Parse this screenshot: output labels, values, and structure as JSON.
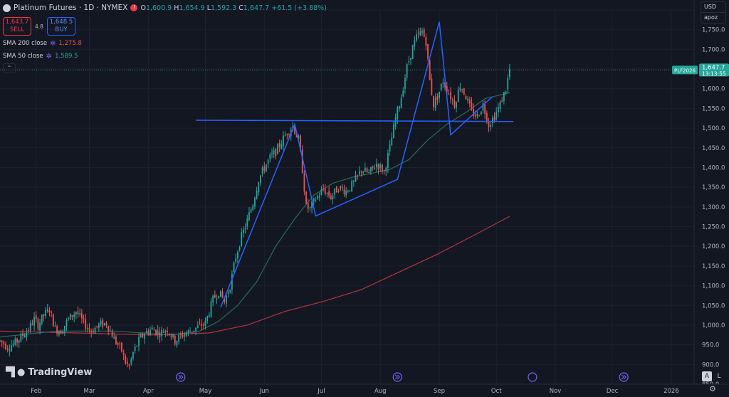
{
  "legend": {
    "title": "Platinum Futures · 1D · NYMEX",
    "o_label": "O",
    "o": "1,600.9",
    "h_label": "H",
    "h": "1,654.9",
    "l_label": "L",
    "l": "1,592.3",
    "c_label": "C",
    "c": "1,647.7",
    "change": "+61.5 (+3.88%)",
    "sell_price": "1,643.7",
    "sell_label": "SELL",
    "spread": "4.8",
    "buy_price": "1,648.5",
    "buy_label": "BUY",
    "sma200_name": "SMA 200 close",
    "sma200_value": "1,275.8",
    "sma50_name": "SMA 50 close",
    "sma50_value": "1,589.5"
  },
  "topright": {
    "currency": "USD",
    "scale": "apoz"
  },
  "logo": {
    "text": "TradingView"
  },
  "axis_buttons": {
    "auto": "A",
    "log": "L"
  },
  "colors": {
    "up": "#26a69a",
    "down": "#ef5350",
    "sma200": "#b2363e",
    "sma50": "#2a6b5c",
    "pattern": "#2962ff",
    "bg": "#131722"
  },
  "chart_data": {
    "type": "candlestick",
    "symbol_label": "PLF2026",
    "last_price": "1,647.7",
    "countdown": "13:13:55",
    "ylim": [
      850,
      1800
    ],
    "y_ticks": [
      "850.0",
      "900.0",
      "950.0",
      "1,000.0",
      "1,050.0",
      "1,100.0",
      "1,150.0",
      "1,200.0",
      "1,250.0",
      "1,300.0",
      "1,350.0",
      "1,400.0",
      "1,450.0",
      "1,500.0",
      "1,550.0",
      "1,600.0",
      "1,650.0",
      "1,700.0",
      "1,750.0",
      "1,800.0"
    ],
    "x_ticks": [
      "Feb",
      "Mar",
      "Apr",
      "May",
      "Jun",
      "Jul",
      "Aug",
      "Sep",
      "Oct",
      "Nov",
      "Dec",
      "2026"
    ],
    "x_tick_days": [
      19,
      47,
      78,
      108,
      139,
      169,
      200,
      231,
      261,
      292,
      322,
      353
    ],
    "price_path": [
      [
        0,
        960
      ],
      [
        4,
        945
      ],
      [
        8,
        955
      ],
      [
        12,
        975
      ],
      [
        15,
        990
      ],
      [
        18,
        1015
      ],
      [
        20,
        1000
      ],
      [
        23,
        1025
      ],
      [
        26,
        1040
      ],
      [
        29,
        990
      ],
      [
        32,
        985
      ],
      [
        36,
        1015
      ],
      [
        40,
        1035
      ],
      [
        44,
        1005
      ],
      [
        48,
        985
      ],
      [
        52,
        1000
      ],
      [
        56,
        1005
      ],
      [
        60,
        965
      ],
      [
        64,
        935
      ],
      [
        66,
        905
      ],
      [
        68,
        895
      ],
      [
        70,
        930
      ],
      [
        73,
        960
      ],
      [
        76,
        980
      ],
      [
        80,
        990
      ],
      [
        84,
        980
      ],
      [
        88,
        990
      ],
      [
        92,
        960
      ],
      [
        96,
        975
      ],
      [
        100,
        985
      ],
      [
        104,
        995
      ],
      [
        108,
        1005
      ],
      [
        112,
        1065
      ],
      [
        115,
        1085
      ],
      [
        118,
        1060
      ],
      [
        121,
        1100
      ],
      [
        124,
        1175
      ],
      [
        127,
        1225
      ],
      [
        130,
        1265
      ],
      [
        133,
        1310
      ],
      [
        136,
        1370
      ],
      [
        139,
        1400
      ],
      [
        142,
        1425
      ],
      [
        145,
        1440
      ],
      [
        148,
        1465
      ],
      [
        151,
        1490
      ],
      [
        154,
        1505
      ],
      [
        157,
        1470
      ],
      [
        159,
        1395
      ],
      [
        161,
        1300
      ],
      [
        163,
        1295
      ],
      [
        166,
        1320
      ],
      [
        170,
        1345
      ],
      [
        174,
        1325
      ],
      [
        178,
        1350
      ],
      [
        182,
        1340
      ],
      [
        186,
        1360
      ],
      [
        190,
        1395
      ],
      [
        194,
        1385
      ],
      [
        198,
        1410
      ],
      [
        202,
        1390
      ],
      [
        205,
        1450
      ],
      [
        208,
        1525
      ],
      [
        211,
        1580
      ],
      [
        214,
        1655
      ],
      [
        217,
        1705
      ],
      [
        219,
        1730
      ],
      [
        222,
        1745
      ],
      [
        224,
        1720
      ],
      [
        226,
        1620
      ],
      [
        228,
        1560
      ],
      [
        230,
        1580
      ],
      [
        233,
        1620
      ],
      [
        236,
        1590
      ],
      [
        239,
        1560
      ],
      [
        242,
        1610
      ],
      [
        245,
        1580
      ],
      [
        248,
        1540
      ],
      [
        251,
        1530
      ],
      [
        254,
        1560
      ],
      [
        257,
        1510
      ],
      [
        260,
        1530
      ],
      [
        263,
        1560
      ],
      [
        266,
        1600
      ],
      [
        268,
        1650
      ]
    ],
    "sma50_path": [
      [
        0,
        970
      ],
      [
        30,
        985
      ],
      [
        60,
        985
      ],
      [
        90,
        975
      ],
      [
        105,
        985
      ],
      [
        115,
        1010
      ],
      [
        125,
        1050
      ],
      [
        135,
        1110
      ],
      [
        145,
        1200
      ],
      [
        155,
        1270
      ],
      [
        165,
        1330
      ],
      [
        175,
        1360
      ],
      [
        185,
        1375
      ],
      [
        195,
        1385
      ],
      [
        205,
        1395
      ],
      [
        215,
        1420
      ],
      [
        225,
        1470
      ],
      [
        235,
        1510
      ],
      [
        245,
        1540
      ],
      [
        255,
        1575
      ],
      [
        268,
        1590
      ]
    ],
    "sma200_path": [
      [
        0,
        985
      ],
      [
        40,
        980
      ],
      [
        80,
        975
      ],
      [
        110,
        980
      ],
      [
        130,
        1000
      ],
      [
        150,
        1035
      ],
      [
        170,
        1060
      ],
      [
        190,
        1090
      ],
      [
        210,
        1135
      ],
      [
        230,
        1180
      ],
      [
        250,
        1230
      ],
      [
        268,
        1276
      ]
    ],
    "pattern_lines": [
      {
        "name": "support",
        "points": [
          [
            103,
            1520
          ],
          [
            270,
            1517
          ]
        ]
      },
      {
        "name": "zigzag",
        "points": [
          [
            116,
            1045
          ],
          [
            155,
            1510
          ],
          [
            166,
            1277
          ],
          [
            209,
            1370
          ],
          [
            231,
            1770
          ],
          [
            237,
            1483
          ],
          [
            259,
            1580
          ]
        ]
      }
    ]
  }
}
